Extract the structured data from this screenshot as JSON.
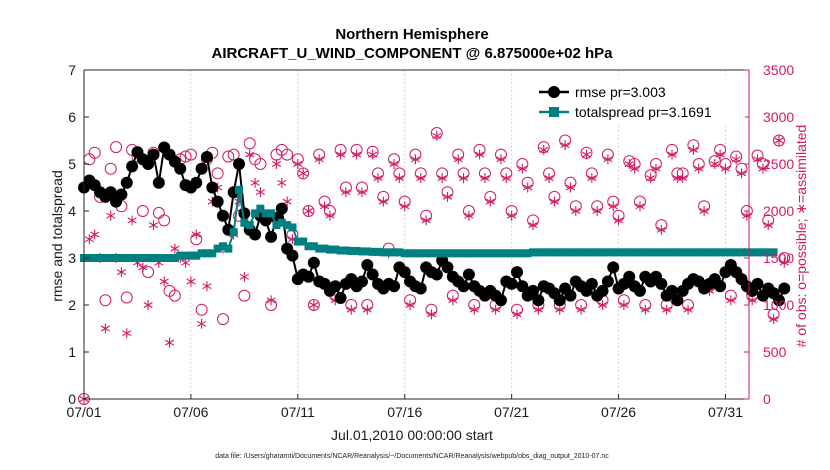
{
  "chart_data": {
    "type": "line",
    "title": "Northern Hemisphere",
    "subtitle": "AIRCRAFT_U_WIND_COMPONENT @ 6.875000e+02 hPa",
    "xlabel": "Jul.01,2010 00:00:00 start",
    "ylabel_left": "rmse and totalspread",
    "ylabel_right": "# of obs: o=possible; ∗=assimilated",
    "footnote": "data file: /Users/gharamti/Documents/NCAR/Reanalysis/~/Documents/NCAR/Reanalysis/webpub/obs_diag_output_2010-07.nc",
    "x_ticks": [
      "07/01",
      "07/06",
      "07/11",
      "07/16",
      "07/21",
      "07/26",
      "07/31"
    ],
    "x_tick_days": [
      1,
      6,
      11,
      16,
      21,
      26,
      31
    ],
    "xlim": [
      1,
      32.1
    ],
    "ylim_left": [
      0,
      7
    ],
    "ylim_right": [
      0,
      3500
    ],
    "yticks_left": [
      "0",
      "1",
      "2",
      "3",
      "4",
      "5",
      "6",
      "7"
    ],
    "yticks_right": [
      "0",
      "500",
      "1000",
      "1500",
      "2000",
      "2500",
      "3000",
      "3500"
    ],
    "colors": {
      "rmse": "#000000",
      "spread": "#008080",
      "obs": "#d11a63",
      "axis": "#262626"
    },
    "legend": [
      {
        "name": "rmse  pr=3.003",
        "marker": "filled-circle"
      },
      {
        "name": "totalspread  pr=3.1691",
        "marker": "filled-square"
      }
    ],
    "series": [
      {
        "name": "rmse",
        "axis": "left",
        "x_start": 1,
        "dx": 0.25,
        "values": [
          4.5,
          4.65,
          4.55,
          4.4,
          4.3,
          4.4,
          4.2,
          4.35,
          4.6,
          4.95,
          5.25,
          5.1,
          5.0,
          5.2,
          4.6,
          5.35,
          5.2,
          5.05,
          4.9,
          4.55,
          4.5,
          4.6,
          4.9,
          5.15,
          4.5,
          4.2,
          3.9,
          3.6,
          4.4,
          5.0,
          3.95,
          3.6,
          3.5,
          3.9,
          3.8,
          3.45,
          3.85,
          4.05,
          3.2,
          3.05,
          2.55,
          2.65,
          2.6,
          2.9,
          2.5,
          2.45,
          2.3,
          2.4,
          2.15,
          2.45,
          2.55,
          2.4,
          2.5,
          2.85,
          2.65,
          2.45,
          2.35,
          2.45,
          2.4,
          2.8,
          2.7,
          2.5,
          2.4,
          2.35,
          2.8,
          2.7,
          2.65,
          2.95,
          2.8,
          2.6,
          2.5,
          2.4,
          2.65,
          2.4,
          2.3,
          2.2,
          2.3,
          2.2,
          2.1,
          2.5,
          2.45,
          2.7,
          2.4,
          2.2,
          2.3,
          2.1,
          2.4,
          2.35,
          2.25,
          2.1,
          2.35,
          2.2,
          2.5,
          2.4,
          2.3,
          2.45,
          2.2,
          2.3,
          2.5,
          2.8,
          2.35,
          2.45,
          2.6,
          2.4,
          2.3,
          2.6,
          2.5,
          2.6,
          2.45,
          2.2,
          2.3,
          2.1,
          2.3,
          2.45,
          2.55,
          2.5,
          2.35,
          2.45,
          2.55,
          2.4,
          2.7,
          2.85,
          2.7,
          2.55,
          2.4,
          2.3,
          2.45,
          2.2,
          2.35,
          2.25,
          2.1,
          2.35
        ]
      },
      {
        "name": "totalspread",
        "axis": "left",
        "x_start": 1,
        "dx": 0.25,
        "values": [
          3.0,
          3.0,
          3.0,
          3.0,
          3.0,
          3.0,
          3.0,
          3.0,
          3.0,
          3.0,
          3.0,
          3.0,
          3.0,
          3.0,
          3.0,
          3.0,
          3.0,
          3.0,
          3.05,
          3.05,
          3.05,
          3.05,
          3.1,
          3.1,
          3.1,
          3.2,
          3.25,
          3.2,
          3.55,
          4.45,
          3.75,
          3.7,
          3.95,
          4.05,
          3.95,
          3.95,
          3.7,
          3.75,
          3.7,
          3.65,
          3.35,
          3.35,
          3.25,
          3.25,
          3.2,
          3.2,
          3.18,
          3.18,
          3.16,
          3.16,
          3.15,
          3.15,
          3.14,
          3.14,
          3.13,
          3.13,
          3.12,
          3.12,
          3.12,
          3.12,
          3.1,
          3.1,
          3.1,
          3.1,
          3.1,
          3.1,
          3.1,
          3.1,
          3.1,
          3.1,
          3.1,
          3.1,
          3.1,
          3.1,
          3.1,
          3.1,
          3.1,
          3.1,
          3.1,
          3.1,
          3.1,
          3.1,
          3.1,
          3.1,
          3.12,
          3.12,
          3.12,
          3.12,
          3.12,
          3.12,
          3.12,
          3.12,
          3.12,
          3.12,
          3.12,
          3.12,
          3.12,
          3.12,
          3.12,
          3.12,
          3.12,
          3.12,
          3.12,
          3.12,
          3.12,
          3.12,
          3.12,
          3.12,
          3.12,
          3.12,
          3.12,
          3.12,
          3.12,
          3.12,
          3.12,
          3.12,
          3.12,
          3.12,
          3.12,
          3.12,
          3.12,
          3.12,
          3.12,
          3.12,
          3.12,
          3.12,
          3.12,
          3.12,
          3.12,
          3.12
        ]
      },
      {
        "name": "obs_possible",
        "axis": "right",
        "marker": "open-circle",
        "x_start": 1,
        "dx": 0.25,
        "values": [
          0,
          2550,
          2620,
          2150,
          1050,
          2450,
          2680,
          2050,
          1080,
          2650,
          2580,
          2000,
          1350,
          2620,
          1980,
          1900,
          1150,
          1100,
          2550,
          2580,
          2600,
          1700,
          950,
          2550,
          2620,
          2400,
          850,
          2580,
          2600,
          1950,
          1100,
          2720,
          2550,
          2500,
          1950,
          1000,
          2600,
          2650,
          2600,
          1750,
          2550,
          2400,
          2000,
          1000,
          2600,
          2100,
          2000,
          1100,
          2650,
          2250,
          1000,
          2650,
          2250,
          1000,
          2630,
          2400,
          2150,
          1600,
          2550,
          2400,
          2100,
          1050,
          2600,
          2400,
          1950,
          950,
          2830,
          2400,
          2200,
          1100,
          2600,
          2400,
          2000,
          1000,
          2650,
          2400,
          2150,
          1000,
          2600,
          2400,
          2000,
          950,
          2500,
          2300,
          1900,
          1000,
          2680,
          2400,
          2150,
          1000,
          2750,
          2300,
          2050,
          1000,
          2620,
          2400,
          2050,
          1050,
          2600,
          2100,
          1950,
          1050,
          2530,
          2500,
          2100,
          1000,
          2380,
          2500,
          1850,
          1000,
          2650,
          2400,
          2400,
          1000,
          2700,
          2500,
          2050,
          1200,
          2530,
          2650,
          2500,
          1100,
          2580,
          2450,
          2000,
          1100,
          2590,
          2500,
          1900,
          900,
          2750,
          1500
        ]
      },
      {
        "name": "obs_assimilated",
        "axis": "right",
        "marker": "asterisk",
        "x_start": 1,
        "dx": 0.25,
        "values": [
          0,
          1700,
          1750,
          1500,
          750,
          1950,
          1500,
          1350,
          700,
          1900,
          1450,
          1400,
          1000,
          1850,
          1450,
          1250,
          600,
          1600,
          1500,
          1450,
          1250,
          1750,
          800,
          1200,
          2100,
          2250,
          1600,
          1800,
          1750,
          2100,
          1300,
          2600,
          2300,
          2200,
          1900,
          1050,
          2500,
          2300,
          2100,
          1700,
          2500,
          2400,
          2000,
          1000,
          2550,
          2050,
          1950,
          1050,
          2600,
          2200,
          950,
          2600,
          2200,
          950,
          2600,
          2350,
          2100,
          1550,
          2500,
          2350,
          2050,
          1000,
          2550,
          2350,
          1900,
          900,
          2800,
          2350,
          2150,
          1050,
          2550,
          2350,
          1950,
          950,
          2600,
          2350,
          2100,
          950,
          2550,
          2350,
          1950,
          900,
          2450,
          2250,
          1850,
          950,
          2650,
          2350,
          2100,
          950,
          2700,
          2250,
          2000,
          950,
          2600,
          2350,
          2000,
          1000,
          2550,
          2050,
          1900,
          1000,
          2500,
          2450,
          2050,
          950,
          2350,
          2450,
          1800,
          950,
          2600,
          2350,
          2350,
          950,
          2650,
          2450,
          2000,
          1150,
          2500,
          2600,
          2450,
          1050,
          2550,
          2400,
          1950,
          1050,
          2550,
          2450,
          1850,
          850,
          2750,
          1450
        ]
      }
    ]
  }
}
